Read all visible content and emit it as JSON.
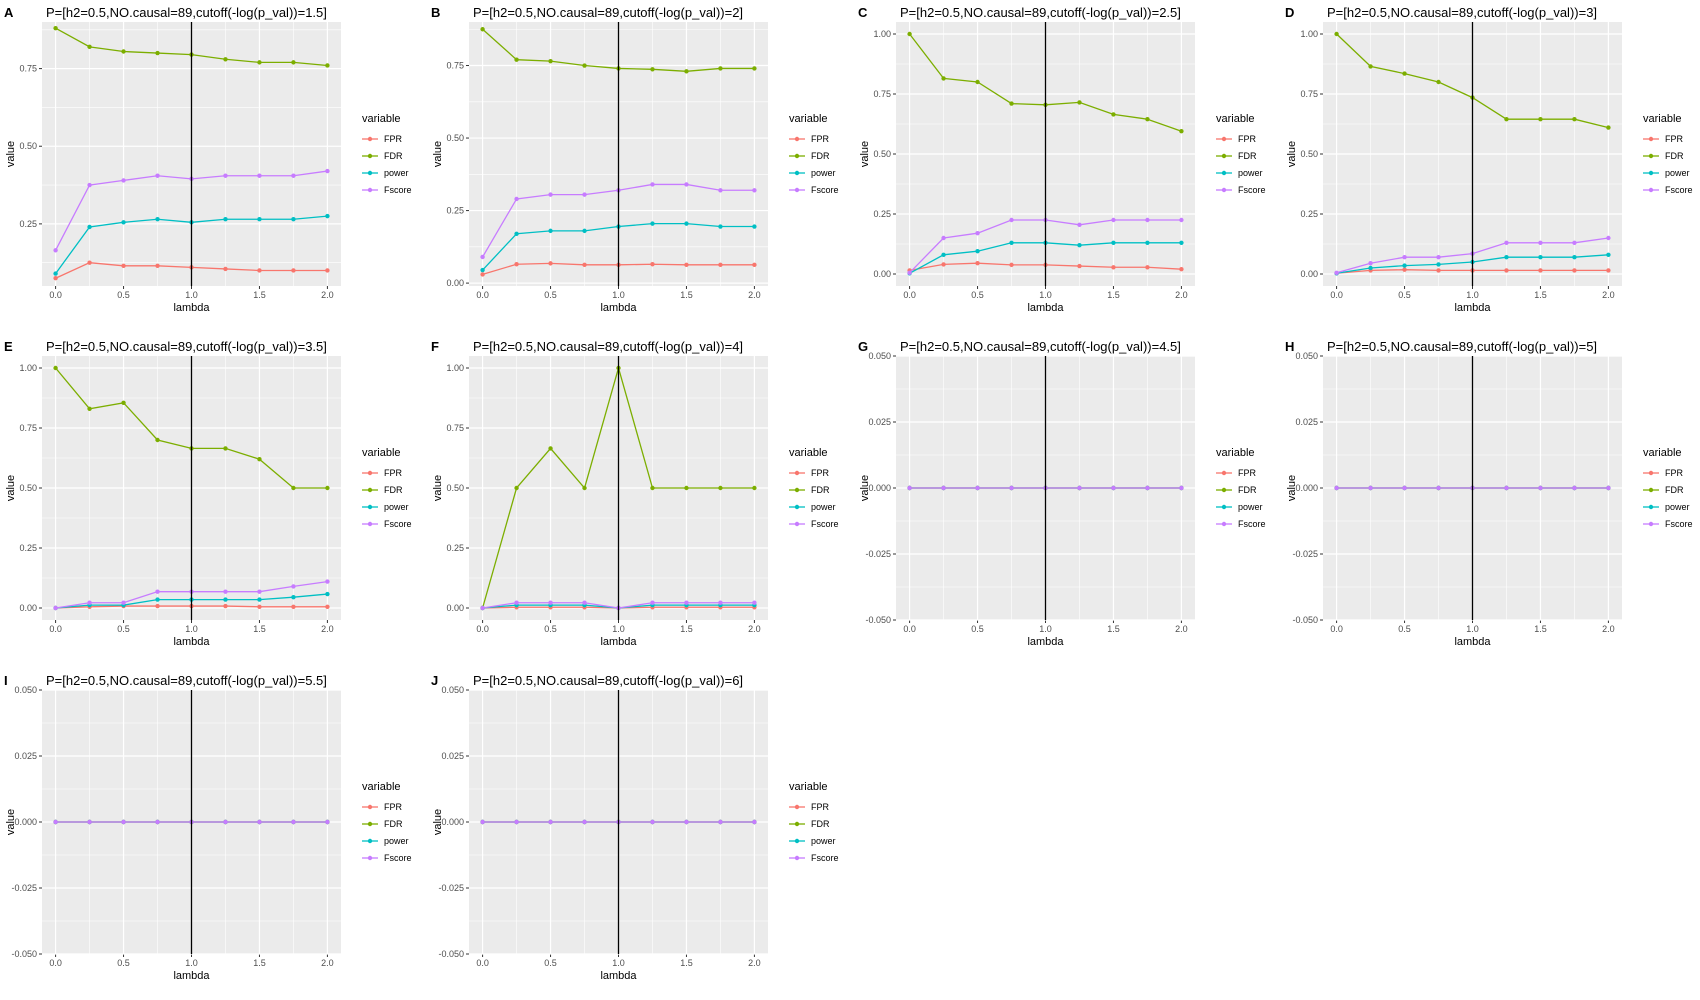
{
  "legend": {
    "title": "variable",
    "items": [
      {
        "name": "FPR",
        "color": "#F8766D"
      },
      {
        "name": "FDR",
        "color": "#7CAE00"
      },
      {
        "name": "power",
        "color": "#00BFC4"
      },
      {
        "name": "Fscore",
        "color": "#C77CFF"
      }
    ]
  },
  "panel_style": {
    "background": "#EBEBEB",
    "grid_color": "#FFFFFF",
    "vline_color": "#000000"
  },
  "chart_data": [
    {
      "tag": "A",
      "type": "line",
      "title": "P=[h2=0.5,NO.causal=89,cutoff(-log(p_val))=1.5]",
      "xlabel": "lambda",
      "ylabel": "value",
      "x": [
        0,
        0.25,
        0.5,
        0.75,
        1,
        1.25,
        1.5,
        1.75,
        2
      ],
      "xticks": [
        "0.0",
        "0.5",
        "1.0",
        "1.5",
        "2.0"
      ],
      "xtick_values": [
        0,
        0.5,
        1,
        1.5,
        2
      ],
      "yticks": [
        "0.25",
        "0.50",
        "0.75"
      ],
      "ytick_values": [
        0.25,
        0.5,
        0.75
      ],
      "ylim": [
        0.05,
        0.9
      ],
      "xlim": [
        -0.1,
        2.1
      ],
      "vline": 1,
      "grid": true,
      "legend": "right",
      "series": [
        {
          "name": "FPR",
          "values": [
            0.075,
            0.125,
            0.115,
            0.115,
            0.11,
            0.105,
            0.1,
            0.1,
            0.1
          ]
        },
        {
          "name": "FDR",
          "values": [
            0.88,
            0.82,
            0.805,
            0.8,
            0.795,
            0.78,
            0.77,
            0.77,
            0.76
          ]
        },
        {
          "name": "power",
          "values": [
            0.09,
            0.24,
            0.255,
            0.265,
            0.255,
            0.265,
            0.265,
            0.265,
            0.275
          ]
        },
        {
          "name": "Fscore",
          "values": [
            0.165,
            0.375,
            0.39,
            0.405,
            0.395,
            0.405,
            0.405,
            0.405,
            0.42
          ]
        }
      ]
    },
    {
      "tag": "B",
      "type": "line",
      "title": "P=[h2=0.5,NO.causal=89,cutoff(-log(p_val))=2]",
      "xlabel": "lambda",
      "ylabel": "value",
      "x": [
        0,
        0.25,
        0.5,
        0.75,
        1,
        1.25,
        1.5,
        1.75,
        2
      ],
      "xticks": [
        "0.0",
        "0.5",
        "1.0",
        "1.5",
        "2.0"
      ],
      "xtick_values": [
        0,
        0.5,
        1,
        1.5,
        2
      ],
      "yticks": [
        "0.00",
        "0.25",
        "0.50",
        "0.75"
      ],
      "ytick_values": [
        0,
        0.25,
        0.5,
        0.75
      ],
      "ylim": [
        -0.01,
        0.9
      ],
      "xlim": [
        -0.1,
        2.1
      ],
      "vline": 1,
      "grid": true,
      "legend": "right",
      "series": [
        {
          "name": "FPR",
          "values": [
            0.03,
            0.065,
            0.068,
            0.063,
            0.063,
            0.065,
            0.063,
            0.063,
            0.063
          ]
        },
        {
          "name": "FDR",
          "values": [
            0.875,
            0.77,
            0.765,
            0.75,
            0.74,
            0.737,
            0.73,
            0.74,
            0.74
          ]
        },
        {
          "name": "power",
          "values": [
            0.045,
            0.17,
            0.18,
            0.18,
            0.195,
            0.205,
            0.205,
            0.195,
            0.195
          ]
        },
        {
          "name": "Fscore",
          "values": [
            0.09,
            0.29,
            0.305,
            0.305,
            0.32,
            0.34,
            0.34,
            0.32,
            0.32
          ]
        }
      ]
    },
    {
      "tag": "C",
      "type": "line",
      "title": "P=[h2=0.5,NO.causal=89,cutoff(-log(p_val))=2.5]",
      "xlabel": "lambda",
      "ylabel": "value",
      "x": [
        0,
        0.25,
        0.5,
        0.75,
        1,
        1.25,
        1.5,
        1.75,
        2
      ],
      "xticks": [
        "0.0",
        "0.5",
        "1.0",
        "1.5",
        "2.0"
      ],
      "xtick_values": [
        0,
        0.5,
        1,
        1.5,
        2
      ],
      "yticks": [
        "0.00",
        "0.25",
        "0.50",
        "0.75",
        "1.00"
      ],
      "ytick_values": [
        0,
        0.25,
        0.5,
        0.75,
        1
      ],
      "ylim": [
        -0.05,
        1.05
      ],
      "xlim": [
        -0.1,
        2.1
      ],
      "vline": 1,
      "grid": true,
      "legend": "right",
      "series": [
        {
          "name": "FPR",
          "values": [
            0.015,
            0.04,
            0.045,
            0.038,
            0.038,
            0.033,
            0.028,
            0.028,
            0.02
          ]
        },
        {
          "name": "FDR",
          "values": [
            1.0,
            0.815,
            0.8,
            0.71,
            0.705,
            0.715,
            0.665,
            0.645,
            0.595
          ]
        },
        {
          "name": "power",
          "values": [
            0.003,
            0.08,
            0.095,
            0.13,
            0.13,
            0.12,
            0.13,
            0.13,
            0.13
          ]
        },
        {
          "name": "Fscore",
          "values": [
            0.005,
            0.15,
            0.17,
            0.225,
            0.225,
            0.205,
            0.225,
            0.225,
            0.225
          ]
        }
      ]
    },
    {
      "tag": "D",
      "type": "line",
      "title": "P=[h2=0.5,NO.causal=89,cutoff(-log(p_val))=3]",
      "xlabel": "lambda",
      "ylabel": "value",
      "x": [
        0,
        0.25,
        0.5,
        0.75,
        1,
        1.25,
        1.5,
        1.75,
        2
      ],
      "xticks": [
        "0.0",
        "0.5",
        "1.0",
        "1.5",
        "2.0"
      ],
      "xtick_values": [
        0,
        0.5,
        1,
        1.5,
        2
      ],
      "yticks": [
        "0.00",
        "0.25",
        "0.50",
        "0.75",
        "1.00"
      ],
      "ytick_values": [
        0,
        0.25,
        0.5,
        0.75,
        1
      ],
      "ylim": [
        -0.05,
        1.05
      ],
      "xlim": [
        -0.1,
        2.1
      ],
      "vline": 1,
      "grid": true,
      "legend": "right",
      "series": [
        {
          "name": "FPR",
          "values": [
            0.003,
            0.015,
            0.018,
            0.015,
            0.015,
            0.015,
            0.015,
            0.015,
            0.015
          ]
        },
        {
          "name": "FDR",
          "values": [
            1.0,
            0.865,
            0.835,
            0.8,
            0.735,
            0.645,
            0.645,
            0.645,
            0.61
          ]
        },
        {
          "name": "power",
          "values": [
            0.003,
            0.025,
            0.035,
            0.04,
            0.05,
            0.07,
            0.07,
            0.07,
            0.08
          ]
        },
        {
          "name": "Fscore",
          "values": [
            0.005,
            0.045,
            0.07,
            0.07,
            0.085,
            0.13,
            0.13,
            0.13,
            0.15
          ]
        }
      ]
    },
    {
      "tag": "E",
      "type": "line",
      "title": "P=[h2=0.5,NO.causal=89,cutoff(-log(p_val))=3.5]",
      "xlabel": "lambda",
      "ylabel": "value",
      "x": [
        0,
        0.25,
        0.5,
        0.75,
        1,
        1.25,
        1.5,
        1.75,
        2
      ],
      "xticks": [
        "0.0",
        "0.5",
        "1.0",
        "1.5",
        "2.0"
      ],
      "xtick_values": [
        0,
        0.5,
        1,
        1.5,
        2
      ],
      "yticks": [
        "0.00",
        "0.25",
        "0.50",
        "0.75",
        "1.00"
      ],
      "ytick_values": [
        0,
        0.25,
        0.5,
        0.75,
        1
      ],
      "ylim": [
        -0.05,
        1.05
      ],
      "xlim": [
        -0.1,
        2.1
      ],
      "vline": 1,
      "grid": true,
      "legend": "right",
      "series": [
        {
          "name": "FPR",
          "values": [
            0.0,
            0.005,
            0.008,
            0.008,
            0.008,
            0.008,
            0.005,
            0.005,
            0.005
          ]
        },
        {
          "name": "FDR",
          "values": [
            1.0,
            0.83,
            0.855,
            0.7,
            0.665,
            0.665,
            0.62,
            0.5,
            0.5
          ]
        },
        {
          "name": "power",
          "values": [
            0.0,
            0.012,
            0.012,
            0.035,
            0.035,
            0.035,
            0.035,
            0.045,
            0.058
          ]
        },
        {
          "name": "Fscore",
          "values": [
            0.0,
            0.022,
            0.022,
            0.068,
            0.068,
            0.068,
            0.068,
            0.09,
            0.11
          ]
        }
      ]
    },
    {
      "tag": "F",
      "type": "line",
      "title": "P=[h2=0.5,NO.causal=89,cutoff(-log(p_val))=4]",
      "xlabel": "lambda",
      "ylabel": "value",
      "x": [
        0,
        0.25,
        0.5,
        0.75,
        1,
        1.25,
        1.5,
        1.75,
        2
      ],
      "xticks": [
        "0.0",
        "0.5",
        "1.0",
        "1.5",
        "2.0"
      ],
      "xtick_values": [
        0,
        0.5,
        1,
        1.5,
        2
      ],
      "yticks": [
        "0.00",
        "0.25",
        "0.50",
        "0.75",
        "1.00"
      ],
      "ytick_values": [
        0,
        0.25,
        0.5,
        0.75,
        1
      ],
      "ylim": [
        -0.05,
        1.05
      ],
      "xlim": [
        -0.1,
        2.1
      ],
      "vline": 1,
      "grid": true,
      "legend": "right",
      "series": [
        {
          "name": "FPR",
          "values": [
            0.0,
            0.003,
            0.003,
            0.003,
            0.0,
            0.003,
            0.003,
            0.003,
            0.003
          ]
        },
        {
          "name": "FDR",
          "values": [
            0.0,
            0.5,
            0.665,
            0.5,
            1.0,
            0.5,
            0.5,
            0.5,
            0.5
          ]
        },
        {
          "name": "power",
          "values": [
            0.0,
            0.012,
            0.012,
            0.012,
            0.0,
            0.012,
            0.012,
            0.012,
            0.012
          ]
        },
        {
          "name": "Fscore",
          "values": [
            0.0,
            0.022,
            0.022,
            0.022,
            0.0,
            0.022,
            0.022,
            0.022,
            0.022
          ]
        }
      ]
    },
    {
      "tag": "G",
      "type": "line",
      "title": "P=[h2=0.5,NO.causal=89,cutoff(-log(p_val))=4.5]",
      "xlabel": "lambda",
      "ylabel": "value",
      "x": [
        0,
        0.25,
        0.5,
        0.75,
        1,
        1.25,
        1.5,
        1.75,
        2
      ],
      "xticks": [
        "0.0",
        "0.5",
        "1.0",
        "1.5",
        "2.0"
      ],
      "xtick_values": [
        0,
        0.5,
        1,
        1.5,
        2
      ],
      "yticks": [
        "-0.050",
        "-0.025",
        "0.000",
        "0.025",
        "0.050"
      ],
      "ytick_values": [
        -0.05,
        -0.025,
        0,
        0.025,
        0.05
      ],
      "ylim": [
        -0.05,
        0.05
      ],
      "xlim": [
        -0.1,
        2.1
      ],
      "vline": 1,
      "grid": true,
      "legend": "right",
      "series": [
        {
          "name": "FPR",
          "values": [
            0,
            0,
            0,
            0,
            0,
            0,
            0,
            0,
            0
          ]
        },
        {
          "name": "FDR",
          "values": [
            0,
            0,
            0,
            0,
            0,
            0,
            0,
            0,
            0
          ]
        },
        {
          "name": "power",
          "values": [
            0,
            0,
            0,
            0,
            0,
            0,
            0,
            0,
            0
          ]
        },
        {
          "name": "Fscore",
          "values": [
            0,
            0,
            0,
            0,
            0,
            0,
            0,
            0,
            0
          ]
        }
      ]
    },
    {
      "tag": "H",
      "type": "line",
      "title": "P=[h2=0.5,NO.causal=89,cutoff(-log(p_val))=5]",
      "xlabel": "lambda",
      "ylabel": "value",
      "x": [
        0,
        0.25,
        0.5,
        0.75,
        1,
        1.25,
        1.5,
        1.75,
        2
      ],
      "xticks": [
        "0.0",
        "0.5",
        "1.0",
        "1.5",
        "2.0"
      ],
      "xtick_values": [
        0,
        0.5,
        1,
        1.5,
        2
      ],
      "yticks": [
        "-0.050",
        "-0.025",
        "0.000",
        "0.025",
        "0.050"
      ],
      "ytick_values": [
        -0.05,
        -0.025,
        0,
        0.025,
        0.05
      ],
      "ylim": [
        -0.05,
        0.05
      ],
      "xlim": [
        -0.1,
        2.1
      ],
      "vline": 1,
      "grid": true,
      "legend": "right",
      "series": [
        {
          "name": "FPR",
          "values": [
            0,
            0,
            0,
            0,
            0,
            0,
            0,
            0,
            0
          ]
        },
        {
          "name": "FDR",
          "values": [
            0,
            0,
            0,
            0,
            0,
            0,
            0,
            0,
            0
          ]
        },
        {
          "name": "power",
          "values": [
            0,
            0,
            0,
            0,
            0,
            0,
            0,
            0,
            0
          ]
        },
        {
          "name": "Fscore",
          "values": [
            0,
            0,
            0,
            0,
            0,
            0,
            0,
            0,
            0
          ]
        }
      ]
    },
    {
      "tag": "I",
      "type": "line",
      "title": "P=[h2=0.5,NO.causal=89,cutoff(-log(p_val))=5.5]",
      "xlabel": "lambda",
      "ylabel": "value",
      "x": [
        0,
        0.25,
        0.5,
        0.75,
        1,
        1.25,
        1.5,
        1.75,
        2
      ],
      "xticks": [
        "0.0",
        "0.5",
        "1.0",
        "1.5",
        "2.0"
      ],
      "xtick_values": [
        0,
        0.5,
        1,
        1.5,
        2
      ],
      "yticks": [
        "-0.050",
        "-0.025",
        "0.000",
        "0.025",
        "0.050"
      ],
      "ytick_values": [
        -0.05,
        -0.025,
        0,
        0.025,
        0.05
      ],
      "ylim": [
        -0.05,
        0.05
      ],
      "xlim": [
        -0.1,
        2.1
      ],
      "vline": 1,
      "grid": true,
      "legend": "right",
      "series": [
        {
          "name": "FPR",
          "values": [
            0,
            0,
            0,
            0,
            0,
            0,
            0,
            0,
            0
          ]
        },
        {
          "name": "FDR",
          "values": [
            0,
            0,
            0,
            0,
            0,
            0,
            0,
            0,
            0
          ]
        },
        {
          "name": "power",
          "values": [
            0,
            0,
            0,
            0,
            0,
            0,
            0,
            0,
            0
          ]
        },
        {
          "name": "Fscore",
          "values": [
            0,
            0,
            0,
            0,
            0,
            0,
            0,
            0,
            0
          ]
        }
      ]
    },
    {
      "tag": "J",
      "type": "line",
      "title": "P=[h2=0.5,NO.causal=89,cutoff(-log(p_val))=6]",
      "xlabel": "lambda",
      "ylabel": "value",
      "x": [
        0,
        0.25,
        0.5,
        0.75,
        1,
        1.25,
        1.5,
        1.75,
        2
      ],
      "xticks": [
        "0.0",
        "0.5",
        "1.0",
        "1.5",
        "2.0"
      ],
      "xtick_values": [
        0,
        0.5,
        1,
        1.5,
        2
      ],
      "yticks": [
        "-0.050",
        "-0.025",
        "0.000",
        "0.025",
        "0.050"
      ],
      "ytick_values": [
        -0.05,
        -0.025,
        0,
        0.025,
        0.05
      ],
      "ylim": [
        -0.05,
        0.05
      ],
      "xlim": [
        -0.1,
        2.1
      ],
      "vline": 1,
      "grid": true,
      "legend": "right",
      "series": [
        {
          "name": "FPR",
          "values": [
            0,
            0,
            0,
            0,
            0,
            0,
            0,
            0,
            0
          ]
        },
        {
          "name": "FDR",
          "values": [
            0,
            0,
            0,
            0,
            0,
            0,
            0,
            0,
            0
          ]
        },
        {
          "name": "power",
          "values": [
            0,
            0,
            0,
            0,
            0,
            0,
            0,
            0,
            0
          ]
        },
        {
          "name": "Fscore",
          "values": [
            0,
            0,
            0,
            0,
            0,
            0,
            0,
            0,
            0
          ]
        }
      ]
    }
  ]
}
